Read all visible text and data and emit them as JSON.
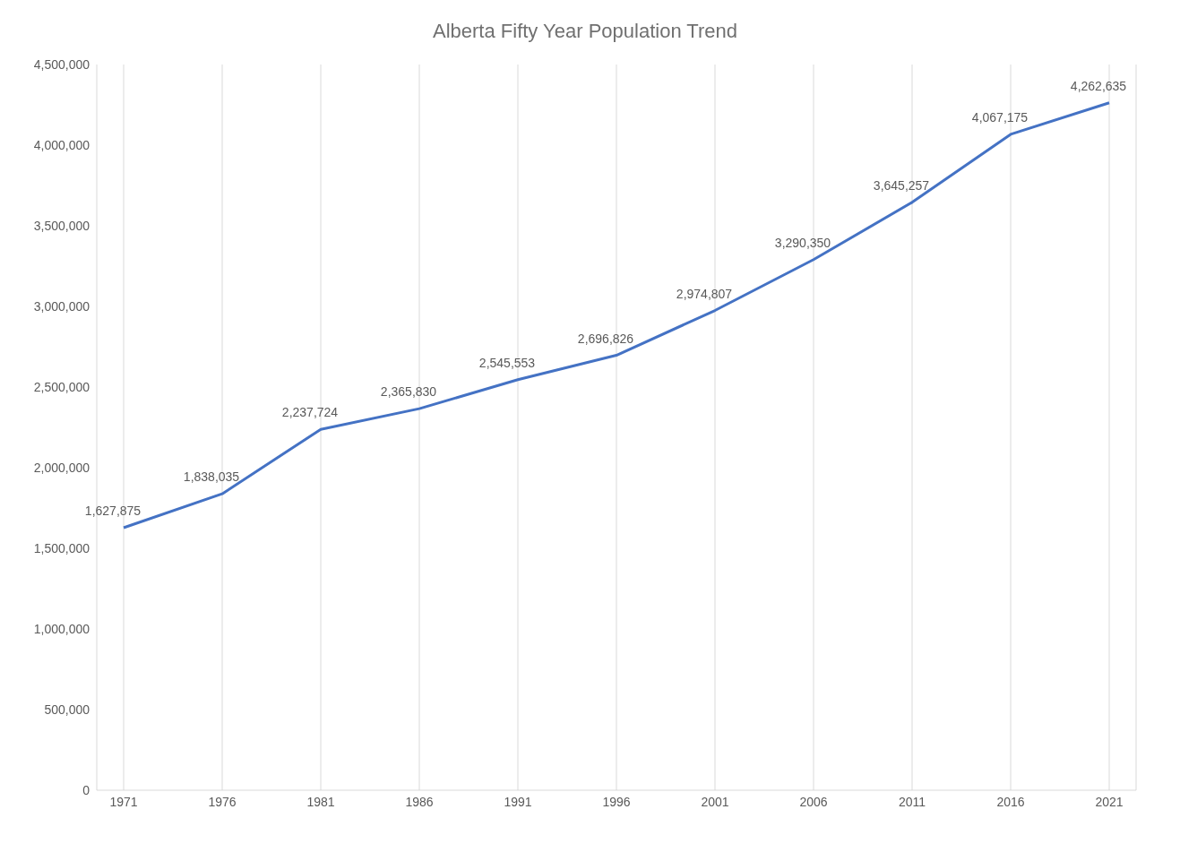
{
  "chart_data": {
    "type": "line",
    "title": "Alberta Fifty Year Population Trend",
    "categories": [
      "1971",
      "1976",
      "1981",
      "1986",
      "1991",
      "1996",
      "2001",
      "2006",
      "2011",
      "2016",
      "2021"
    ],
    "series": [
      {
        "color": "#4472c4",
        "values": [
          1627875,
          1838035,
          2237724,
          2365830,
          2545553,
          2696826,
          2974807,
          3290350,
          3645257,
          4067175,
          4262635
        ],
        "value_labels": [
          "1,627,875",
          "1,838,035",
          "2,237,724",
          "2,365,830",
          "2,545,553",
          "2,696,826",
          "2,974,807",
          "3,290,350",
          "3,645,257",
          "4,067,175",
          "4,262,635"
        ]
      }
    ],
    "ylim": [
      0,
      4500000
    ],
    "yticks": [
      0,
      {
        "value": 500000,
        "label": "500,000"
      },
      {
        "value": 1000000,
        "label": "1,000,000"
      },
      {
        "value": 1500000,
        "label": "1,500,000"
      },
      {
        "value": 2000000,
        "label": "2,000,000"
      },
      {
        "value": 2500000,
        "label": "2,500,000"
      },
      {
        "value": 3000000,
        "label": "3,000,000"
      },
      {
        "value": 3500000,
        "label": "3,500,000"
      },
      {
        "value": 4000000,
        "label": "4,000,000"
      },
      {
        "value": 4500000,
        "label": "4,500,000"
      }
    ],
    "grid": "x",
    "marker": "none",
    "line_style": "solid"
  }
}
